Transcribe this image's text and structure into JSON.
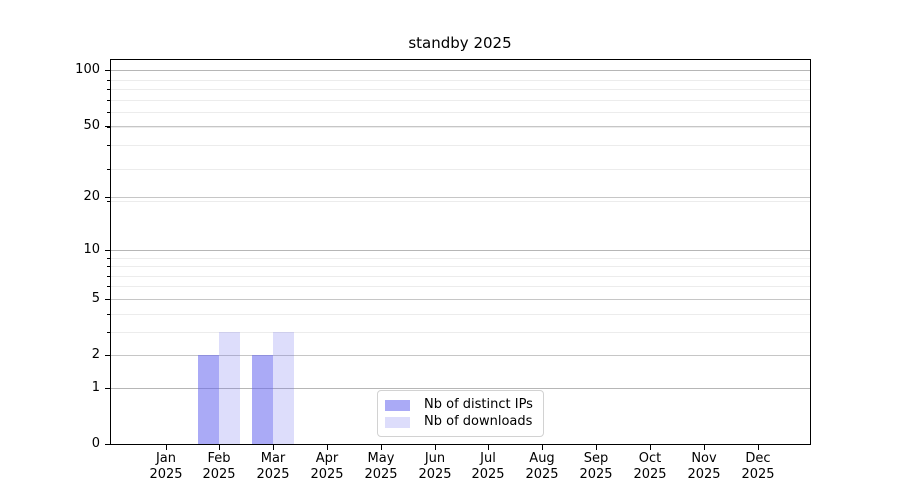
{
  "chart_data": {
    "type": "bar",
    "title": "standby 2025",
    "categories": [
      "Jan",
      "Feb",
      "Mar",
      "Apr",
      "May",
      "Jun",
      "Jul",
      "Aug",
      "Sep",
      "Oct",
      "Nov",
      "Dec"
    ],
    "year": "2025",
    "series": [
      {
        "name": "Nb of distinct IPs",
        "color": "#6464ee",
        "alpha": 0.55,
        "values": [
          0,
          2,
          2,
          0,
          0,
          0,
          0,
          0,
          0,
          0,
          0,
          0
        ]
      },
      {
        "name": "Nb of downloads",
        "color": "#6464ee",
        "alpha": 0.22,
        "values": [
          0,
          3,
          3,
          0,
          0,
          0,
          0,
          0,
          0,
          0,
          0,
          0
        ]
      }
    ],
    "xlabel": "",
    "ylabel": "",
    "yaxis": {
      "scale": "log10(1+y)",
      "ticks": [
        0,
        1,
        2,
        5,
        10,
        20,
        50,
        100
      ],
      "minor_gridlines": [
        3,
        4,
        6,
        7,
        8,
        9,
        19,
        29,
        39,
        49,
        59,
        69,
        79,
        89
      ],
      "ylim": [
        0,
        117
      ]
    },
    "grid": "on",
    "legend_position": "lower center, inside axes"
  },
  "colors": {
    "background": "#ffffff",
    "spine": "#000000",
    "grid_decade": "#b6b6b6",
    "grid_major": "#c6c6c6",
    "grid_minor": "#ececec",
    "legend_border": "#d2d2d2",
    "text": "#000000"
  }
}
